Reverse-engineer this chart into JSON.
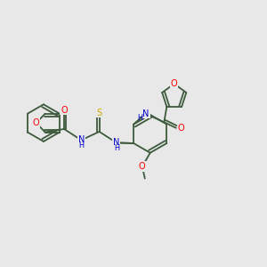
{
  "bg_color": "#e8e8e8",
  "bond_color": "#3d5a3d",
  "atom_colors": {
    "O": "#ff0000",
    "N": "#0000cc",
    "S": "#ccaa00",
    "H": "#3d5a3d",
    "C": "#3d5a3d"
  },
  "font_size": 7.0,
  "line_width": 1.3
}
